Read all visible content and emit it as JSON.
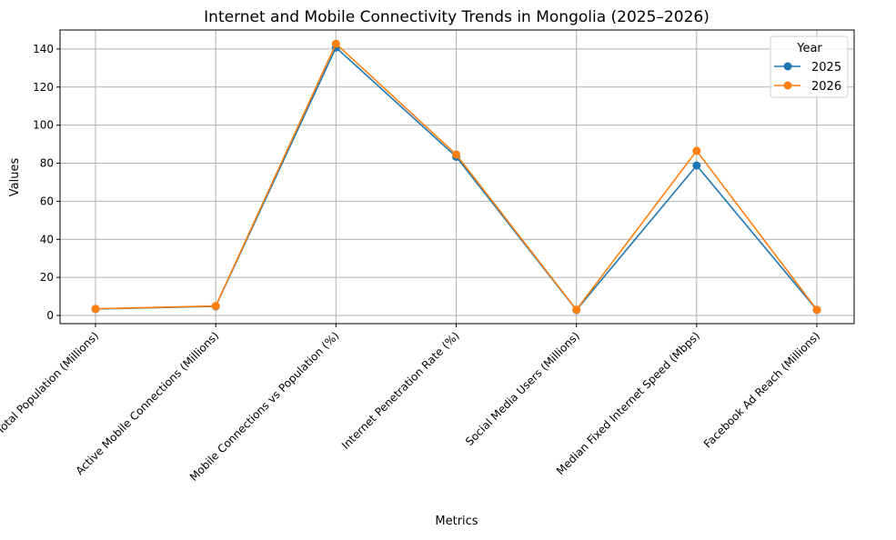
{
  "chart_data": {
    "type": "line",
    "title": "Internet and Mobile Connectivity Trends in Mongolia (2025–2026)",
    "xlabel": "Metrics",
    "ylabel": "Values",
    "categories": [
      "Total Population (Millions)",
      "Active Mobile Connections (Millions)",
      "Mobile Connections vs Population (%)",
      "Internet Penetration Rate (%)",
      "Social Media Users (Millions)",
      "Median Fixed Internet Speed (Mbps)",
      "Facebook Ad Reach (Millions)"
    ],
    "series": [
      {
        "name": "2025",
        "color": "#1f77b4",
        "values": [
          3.4,
          4.8,
          140.8,
          83.4,
          2.9,
          78.8,
          2.9
        ]
      },
      {
        "name": "2026",
        "color": "#ff7f0e",
        "values": [
          3.5,
          5.0,
          142.8,
          84.6,
          3.0,
          86.5,
          3.0
        ]
      }
    ],
    "ylim": [
      -4.3,
      150
    ],
    "yticks": [
      0,
      20,
      40,
      60,
      80,
      100,
      120,
      140
    ],
    "grid": true,
    "marker": "circle",
    "legend": {
      "title": "Year",
      "placement": "top-right"
    }
  }
}
